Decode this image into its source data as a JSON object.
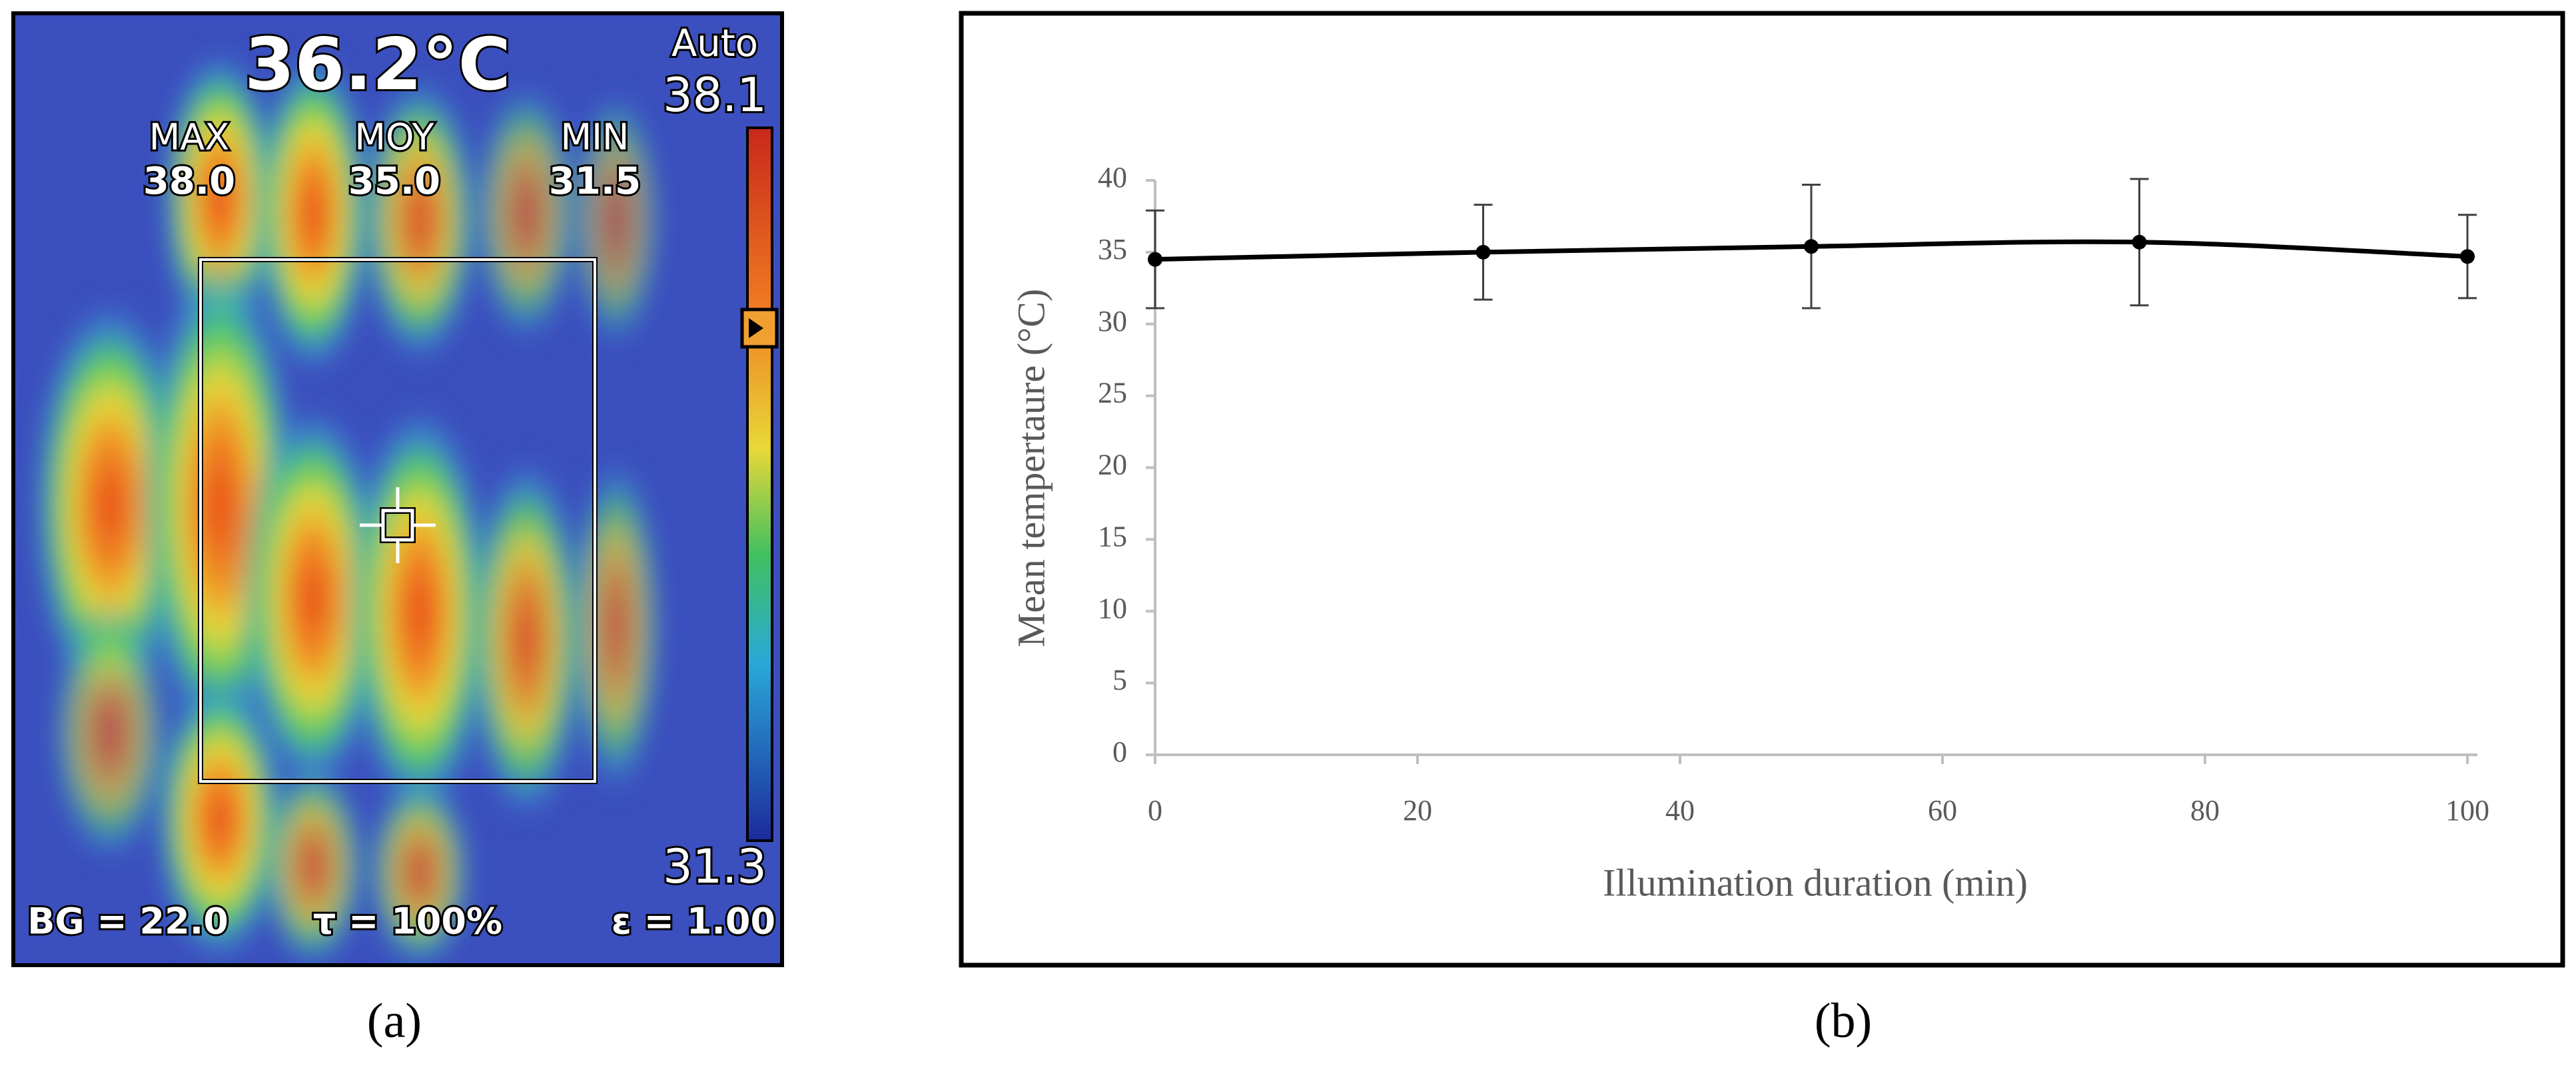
{
  "thermal_image": {
    "temperature": "36.2°C",
    "mode": "Auto",
    "scale_max": "38.1",
    "scale_min": "31.3",
    "stats": [
      {
        "label": "MAX",
        "value": "38.0"
      },
      {
        "label": "MOY",
        "value": "35.0"
      },
      {
        "label": "MIN",
        "value": "31.5"
      }
    ],
    "footer": [
      "BG = 22.0",
      "τ = 100%",
      "ε = 1.00"
    ]
  },
  "panel_labels": [
    "(a)",
    "(b)"
  ],
  "chart_data": {
    "type": "line",
    "x_label": "Illumination duration (min)",
    "y_label": "Mean tempertaure  (°C)",
    "x": [
      0,
      25,
      50,
      75,
      100
    ],
    "series": [
      {
        "color": "#000000",
        "values": [
          34.5,
          35.0,
          35.4,
          35.7,
          34.7
        ],
        "errors": [
          3.4,
          3.3,
          4.3,
          4.4,
          2.9
        ]
      }
    ],
    "xlim": [
      0,
      100
    ],
    "xticks": [
      0,
      20,
      40,
      60,
      80,
      100
    ],
    "ylim": [
      0,
      40
    ],
    "yticks": [
      0,
      5,
      10,
      15,
      20,
      25,
      30,
      35,
      40
    ]
  }
}
